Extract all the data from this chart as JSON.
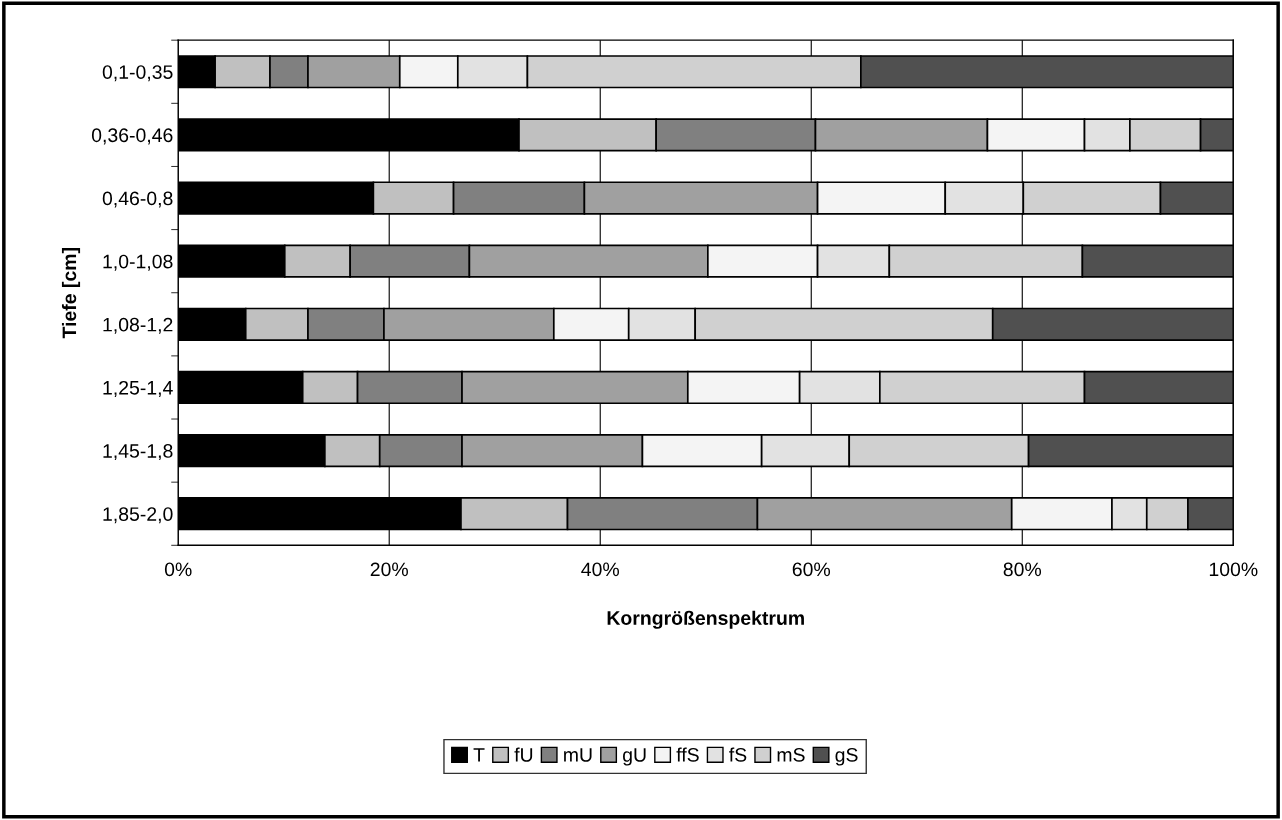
{
  "chart_data": {
    "type": "bar",
    "orientation": "horizontal",
    "stacked": true,
    "xlabel": "Korngrößenspektrum",
    "ylabel": "Tiefe [cm]",
    "categories": [
      "0,1-0,35",
      "0,36-0,46",
      "0,46-0,8",
      "1,0-1,08",
      "1,08-1,2",
      "1,25-1,4",
      "1,45-1,8",
      "1,85-2,0"
    ],
    "series": [
      {
        "name": "T",
        "color": "#000000",
        "values": [
          3.5,
          32.3,
          18.5,
          10.1,
          6.4,
          11.8,
          13.9,
          26.8
        ]
      },
      {
        "name": "fU",
        "color": "#c0c0c0",
        "values": [
          5.2,
          13.0,
          7.6,
          6.2,
          5.9,
          5.2,
          5.2,
          10.1
        ]
      },
      {
        "name": "mU",
        "color": "#808080",
        "values": [
          3.6,
          15.1,
          12.4,
          11.3,
          7.2,
          9.9,
          7.8,
          18.0
        ]
      },
      {
        "name": "gU",
        "color": "#a0a0a0",
        "values": [
          8.7,
          16.3,
          22.1,
          22.6,
          16.1,
          21.4,
          17.1,
          24.1
        ]
      },
      {
        "name": "ffS",
        "color": "#f4f4f4",
        "values": [
          5.5,
          9.2,
          12.1,
          10.4,
          7.1,
          10.6,
          11.3,
          9.5
        ]
      },
      {
        "name": "fS",
        "color": "#e2e2e2",
        "values": [
          6.6,
          4.3,
          7.4,
          6.8,
          6.3,
          7.6,
          8.3,
          3.3
        ]
      },
      {
        "name": "mS",
        "color": "#d0d0d0",
        "values": [
          31.6,
          6.7,
          13.0,
          18.3,
          28.2,
          19.4,
          17.0,
          3.9
        ]
      },
      {
        "name": "gS",
        "color": "#505050",
        "values": [
          35.3,
          3.1,
          6.9,
          14.3,
          22.8,
          14.1,
          19.4,
          4.3
        ]
      }
    ],
    "xlim": [
      0,
      100
    ],
    "xticks": [
      {
        "value": 0,
        "label": "0%"
      },
      {
        "value": 20,
        "label": "20%"
      },
      {
        "value": 40,
        "label": "40%"
      },
      {
        "value": 60,
        "label": "60%"
      },
      {
        "value": 80,
        "label": "80%"
      },
      {
        "value": 100,
        "label": "100%"
      }
    ],
    "grid": "x",
    "legend": "bottom"
  }
}
